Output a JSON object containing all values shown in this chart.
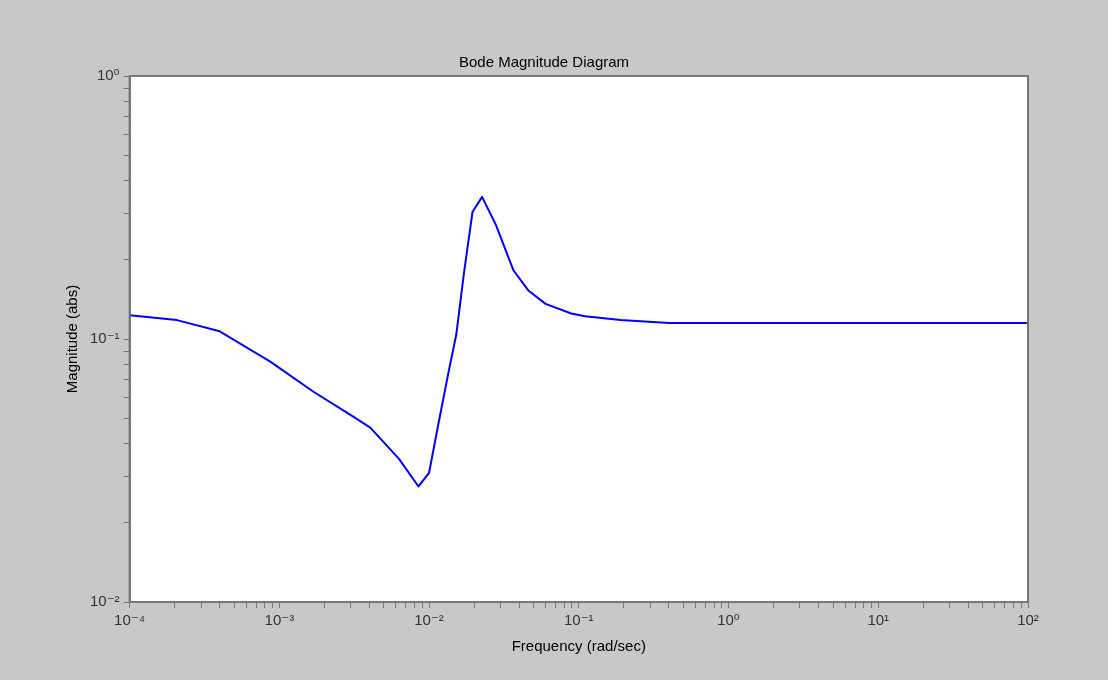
{
  "chart_data": {
    "type": "line",
    "title": "Bode Magnitude Diagram",
    "xlabel": "Frequency (rad/sec)",
    "ylabel": "Magnitude (abs)",
    "log": "xy",
    "legend": false,
    "grid": false,
    "marker": "none",
    "line_style": "solid",
    "xlim": [
      0.0001,
      100
    ],
    "ylim": [
      0.01,
      1
    ],
    "xticks": [
      {
        "value": 0.0001,
        "label": "10⁻⁴"
      },
      {
        "value": 0.0002,
        "label": null
      },
      {
        "value": 0.0003,
        "label": null
      },
      {
        "value": 0.0004,
        "label": null
      },
      {
        "value": 0.0005,
        "label": null
      },
      {
        "value": 0.0006,
        "label": null
      },
      {
        "value": 0.0007,
        "label": null
      },
      {
        "value": 0.0008,
        "label": null
      },
      {
        "value": 0.0009,
        "label": null
      },
      {
        "value": 0.001,
        "label": "10⁻³"
      },
      {
        "value": 0.002,
        "label": null
      },
      {
        "value": 0.003,
        "label": null
      },
      {
        "value": 0.004,
        "label": null
      },
      {
        "value": 0.005,
        "label": null
      },
      {
        "value": 0.006,
        "label": null
      },
      {
        "value": 0.007,
        "label": null
      },
      {
        "value": 0.008,
        "label": null
      },
      {
        "value": 0.009,
        "label": null
      },
      {
        "value": 0.01,
        "label": "10⁻²"
      },
      {
        "value": 0.02,
        "label": null
      },
      {
        "value": 0.03,
        "label": null
      },
      {
        "value": 0.04,
        "label": null
      },
      {
        "value": 0.05,
        "label": null
      },
      {
        "value": 0.06,
        "label": null
      },
      {
        "value": 0.07,
        "label": null
      },
      {
        "value": 0.08,
        "label": null
      },
      {
        "value": 0.09,
        "label": null
      },
      {
        "value": 0.1,
        "label": "10⁻¹"
      },
      {
        "value": 0.2,
        "label": null
      },
      {
        "value": 0.3,
        "label": null
      },
      {
        "value": 0.4,
        "label": null
      },
      {
        "value": 0.5,
        "label": null
      },
      {
        "value": 0.6,
        "label": null
      },
      {
        "value": 0.7,
        "label": null
      },
      {
        "value": 0.8,
        "label": null
      },
      {
        "value": 0.9,
        "label": null
      },
      {
        "value": 1,
        "label": "10⁰"
      },
      {
        "value": 2,
        "label": null
      },
      {
        "value": 3,
        "label": null
      },
      {
        "value": 4,
        "label": null
      },
      {
        "value": 5,
        "label": null
      },
      {
        "value": 6,
        "label": null
      },
      {
        "value": 7,
        "label": null
      },
      {
        "value": 8,
        "label": null
      },
      {
        "value": 9,
        "label": null
      },
      {
        "value": 10,
        "label": "10¹"
      },
      {
        "value": 20,
        "label": null
      },
      {
        "value": 30,
        "label": null
      },
      {
        "value": 40,
        "label": null
      },
      {
        "value": 50,
        "label": null
      },
      {
        "value": 60,
        "label": null
      },
      {
        "value": 70,
        "label": null
      },
      {
        "value": 80,
        "label": null
      },
      {
        "value": 90,
        "label": null
      },
      {
        "value": 100,
        "label": "10²"
      }
    ],
    "yticks": [
      {
        "value": 0.01,
        "label": "10⁻²"
      },
      {
        "value": 0.02,
        "label": null
      },
      {
        "value": 0.03,
        "label": null
      },
      {
        "value": 0.04,
        "label": null
      },
      {
        "value": 0.05,
        "label": null
      },
      {
        "value": 0.06,
        "label": null
      },
      {
        "value": 0.07,
        "label": null
      },
      {
        "value": 0.08,
        "label": null
      },
      {
        "value": 0.09,
        "label": null
      },
      {
        "value": 0.1,
        "label": "10⁻¹"
      },
      {
        "value": 0.2,
        "label": null
      },
      {
        "value": 0.3,
        "label": null
      },
      {
        "value": 0.4,
        "label": null
      },
      {
        "value": 0.5,
        "label": null
      },
      {
        "value": 0.6,
        "label": null
      },
      {
        "value": 0.7,
        "label": null
      },
      {
        "value": 0.8,
        "label": null
      },
      {
        "value": 0.9,
        "label": null
      },
      {
        "value": 1,
        "label": "10⁰"
      }
    ],
    "series": [
      {
        "color": "#0000ff",
        "x": [
          0.0001,
          0.000207,
          0.0004,
          0.00087,
          0.00169,
          0.00306,
          0.00405,
          0.0063,
          0.0085,
          0.01,
          0.0115,
          0.0135,
          0.0152,
          0.0171,
          0.0195,
          0.0226,
          0.028,
          0.0365,
          0.046,
          0.06,
          0.089,
          0.11,
          0.19,
          0.4,
          100
        ],
        "values": [
          0.123,
          0.118,
          0.107,
          0.082,
          0.063,
          0.051,
          0.046,
          0.035,
          0.0275,
          0.031,
          0.047,
          0.075,
          0.104,
          0.178,
          0.304,
          0.347,
          0.271,
          0.183,
          0.153,
          0.136,
          0.125,
          0.122,
          0.118,
          0.115,
          0.115
        ]
      }
    ]
  }
}
